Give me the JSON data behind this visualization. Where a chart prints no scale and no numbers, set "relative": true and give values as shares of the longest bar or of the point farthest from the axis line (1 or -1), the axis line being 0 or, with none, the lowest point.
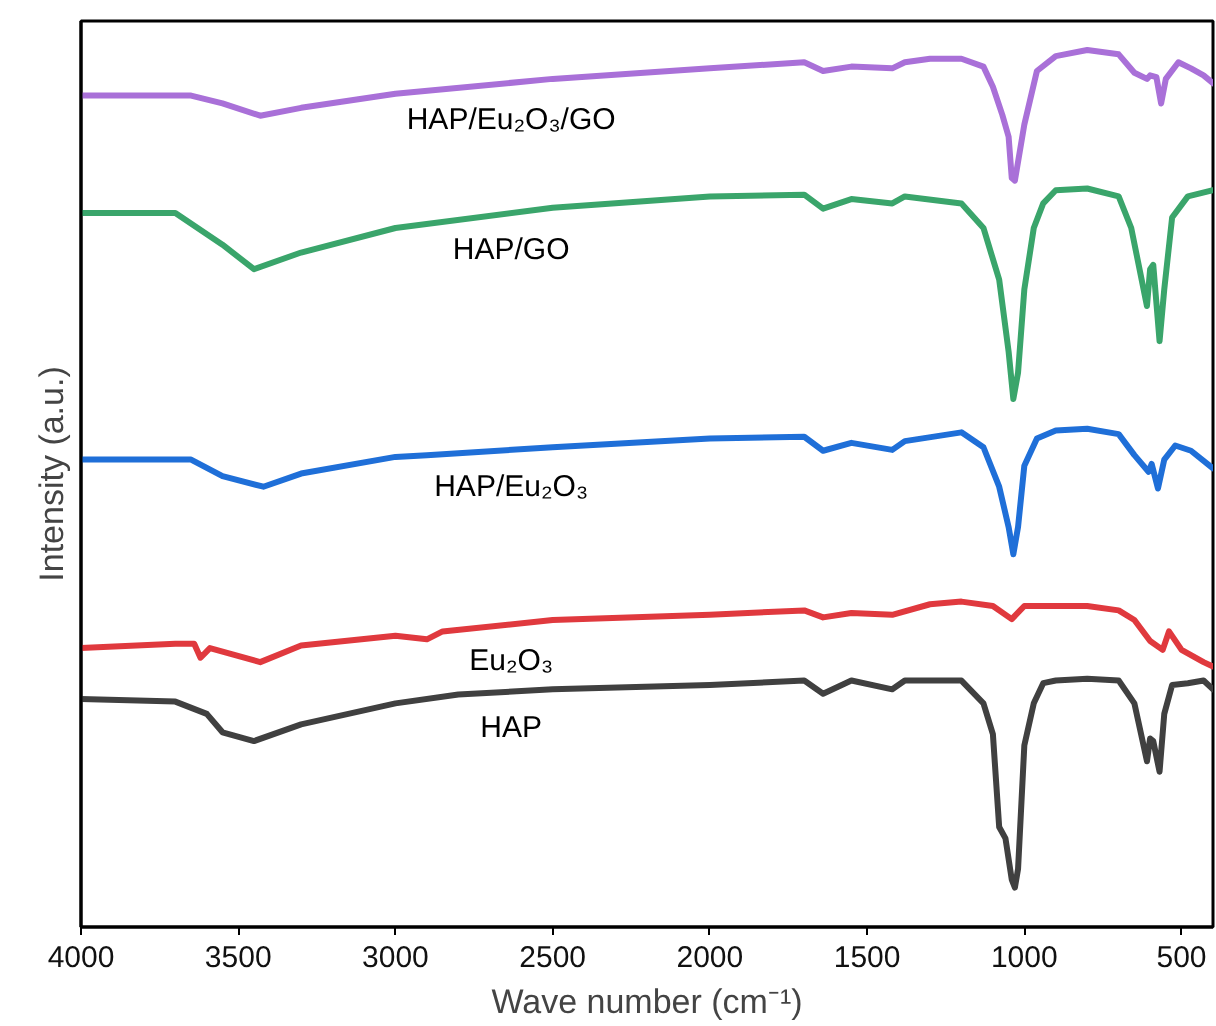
{
  "chart_data": {
    "type": "line",
    "relative": true,
    "xlabel": "Wave number (cm⁻¹)",
    "ylabel": "Intensity (a.u.)",
    "xlim": [
      4000,
      400
    ],
    "xticks": [
      4000,
      3500,
      3000,
      2500,
      2000,
      1500,
      1000,
      500
    ],
    "grid": false,
    "legend": false,
    "marker": "none",
    "line_style": "solid",
    "series": [
      {
        "name": "HAP/Eu₂O₃/GO",
        "color": "#a970d8",
        "x": [
          4000,
          3650,
          3550,
          3430,
          3300,
          3000,
          2500,
          2000,
          1700,
          1640,
          1550,
          1420,
          1380,
          1300,
          1200,
          1130,
          1100,
          1070,
          1050,
          1040,
          1030,
          1000,
          960,
          900,
          800,
          700,
          650,
          610,
          600,
          580,
          565,
          550,
          510,
          470,
          430,
          400
        ],
        "values": [
          0.948,
          0.948,
          0.939,
          0.925,
          0.934,
          0.95,
          0.967,
          0.979,
          0.986,
          0.976,
          0.981,
          0.979,
          0.986,
          0.99,
          0.99,
          0.981,
          0.958,
          0.926,
          0.901,
          0.854,
          0.851,
          0.915,
          0.976,
          0.993,
          1,
          0.995,
          0.974,
          0.967,
          0.971,
          0.969,
          0.939,
          0.967,
          0.986,
          0.979,
          0.971,
          0.962
        ]
      },
      {
        "name": "HAP/GO",
        "color": "#3aa56b",
        "x": [
          4000,
          3700,
          3550,
          3450,
          3300,
          3000,
          2500,
          2000,
          1700,
          1640,
          1550,
          1420,
          1380,
          1200,
          1130,
          1080,
          1050,
          1035,
          1020,
          1000,
          970,
          940,
          900,
          800,
          700,
          660,
          610,
          600,
          590,
          570,
          555,
          530,
          480,
          400
        ],
        "values": [
          0.814,
          0.814,
          0.778,
          0.75,
          0.769,
          0.797,
          0.82,
          0.833,
          0.835,
          0.819,
          0.83,
          0.825,
          0.833,
          0.825,
          0.797,
          0.738,
          0.656,
          0.602,
          0.632,
          0.727,
          0.797,
          0.825,
          0.84,
          0.842,
          0.833,
          0.797,
          0.708,
          0.75,
          0.755,
          0.668,
          0.727,
          0.809,
          0.833,
          0.84
        ]
      },
      {
        "name": "HAP/Eu₂O₃",
        "color": "#1f6fd8",
        "x": [
          4000,
          3650,
          3550,
          3420,
          3300,
          3000,
          2900,
          2500,
          2000,
          1700,
          1640,
          1550,
          1420,
          1380,
          1200,
          1130,
          1080,
          1050,
          1035,
          1020,
          1000,
          960,
          900,
          800,
          700,
          650,
          605,
          595,
          575,
          555,
          520,
          470,
          400
        ],
        "values": [
          0.533,
          0.533,
          0.514,
          0.502,
          0.517,
          0.536,
          0.538,
          0.547,
          0.557,
          0.559,
          0.543,
          0.552,
          0.544,
          0.554,
          0.564,
          0.547,
          0.502,
          0.456,
          0.425,
          0.456,
          0.526,
          0.557,
          0.566,
          0.568,
          0.562,
          0.538,
          0.519,
          0.528,
          0.5,
          0.533,
          0.549,
          0.543,
          0.523
        ]
      },
      {
        "name": "Eu₂O₃",
        "color": "#e0393e",
        "x": [
          4000,
          3700,
          3640,
          3620,
          3590,
          3430,
          3300,
          3000,
          2900,
          2850,
          2500,
          2000,
          1700,
          1640,
          1550,
          1420,
          1300,
          1200,
          1100,
          1040,
          1000,
          900,
          800,
          700,
          650,
          600,
          560,
          540,
          500,
          430,
          400
        ],
        "values": [
          0.318,
          0.323,
          0.323,
          0.307,
          0.318,
          0.302,
          0.321,
          0.332,
          0.328,
          0.337,
          0.35,
          0.356,
          0.361,
          0.353,
          0.358,
          0.356,
          0.368,
          0.371,
          0.366,
          0.351,
          0.366,
          0.366,
          0.366,
          0.361,
          0.35,
          0.326,
          0.316,
          0.337,
          0.316,
          0.302,
          0.297
        ]
      },
      {
        "name": "HAP",
        "color": "#404040",
        "x": [
          4000,
          3700,
          3600,
          3550,
          3450,
          3300,
          3000,
          2800,
          2500,
          2000,
          1700,
          1640,
          1550,
          1420,
          1380,
          1200,
          1130,
          1100,
          1080,
          1060,
          1040,
          1030,
          1020,
          1000,
          970,
          940,
          900,
          800,
          700,
          650,
          610,
          600,
          590,
          570,
          555,
          530,
          480,
          430,
          400
        ],
        "values": [
          0.26,
          0.257,
          0.243,
          0.222,
          0.212,
          0.231,
          0.255,
          0.265,
          0.271,
          0.276,
          0.281,
          0.266,
          0.281,
          0.271,
          0.281,
          0.281,
          0.255,
          0.22,
          0.114,
          0.101,
          0.054,
          0.045,
          0.066,
          0.207,
          0.255,
          0.278,
          0.281,
          0.283,
          0.281,
          0.255,
          0.189,
          0.215,
          0.212,
          0.177,
          0.243,
          0.276,
          0.278,
          0.281,
          0.271
        ]
      }
    ]
  }
}
